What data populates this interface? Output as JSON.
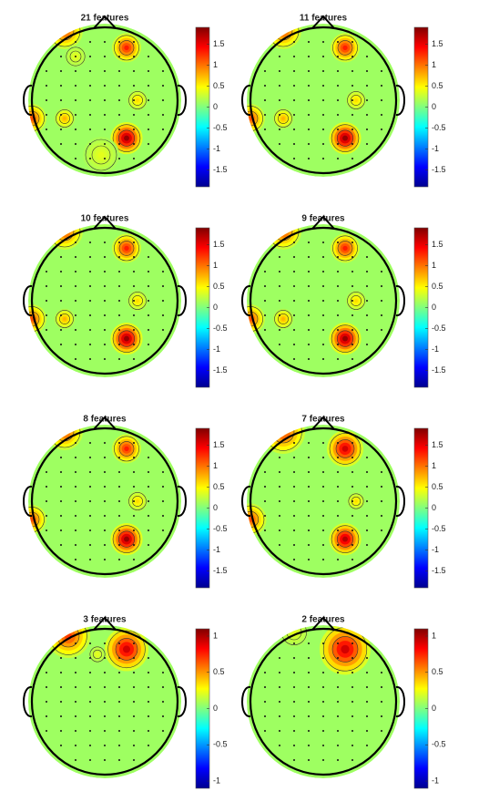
{
  "chart_data": [
    {
      "type": "topoplot",
      "title": "21 features",
      "clim": [
        -1.9,
        1.9
      ],
      "cticks": [
        -1.5,
        -1,
        -0.5,
        0,
        0.5,
        1,
        1.5
      ]
    },
    {
      "type": "topoplot",
      "title": "11 features",
      "clim": [
        -1.9,
        1.9
      ],
      "cticks": [
        -1.5,
        -1,
        -0.5,
        0,
        0.5,
        1,
        1.5
      ]
    },
    {
      "type": "topoplot",
      "title": "10 features",
      "clim": [
        -1.9,
        1.9
      ],
      "cticks": [
        -1.5,
        -1,
        -0.5,
        0,
        0.5,
        1,
        1.5
      ]
    },
    {
      "type": "topoplot",
      "title": "9 features",
      "clim": [
        -1.9,
        1.9
      ],
      "cticks": [
        -1.5,
        -1,
        -0.5,
        0,
        0.5,
        1,
        1.5
      ]
    },
    {
      "type": "topoplot",
      "title": "8 features",
      "clim": [
        -1.9,
        1.9
      ],
      "cticks": [
        -1.5,
        -1,
        -0.5,
        0,
        0.5,
        1,
        1.5
      ]
    },
    {
      "type": "topoplot",
      "title": "7 features",
      "clim": [
        -1.9,
        1.9
      ],
      "cticks": [
        -1.5,
        -1,
        -0.5,
        0,
        0.5,
        1,
        1.5
      ]
    },
    {
      "type": "topoplot",
      "title": "3 features",
      "clim": [
        -1.1,
        1.1
      ],
      "cticks": [
        -1,
        -0.5,
        0,
        0.5,
        1
      ]
    },
    {
      "type": "topoplot",
      "title": "2 features",
      "clim": [
        -1.1,
        1.1
      ],
      "cticks": [
        -1,
        -0.5,
        0,
        0.5,
        1
      ]
    }
  ]
}
